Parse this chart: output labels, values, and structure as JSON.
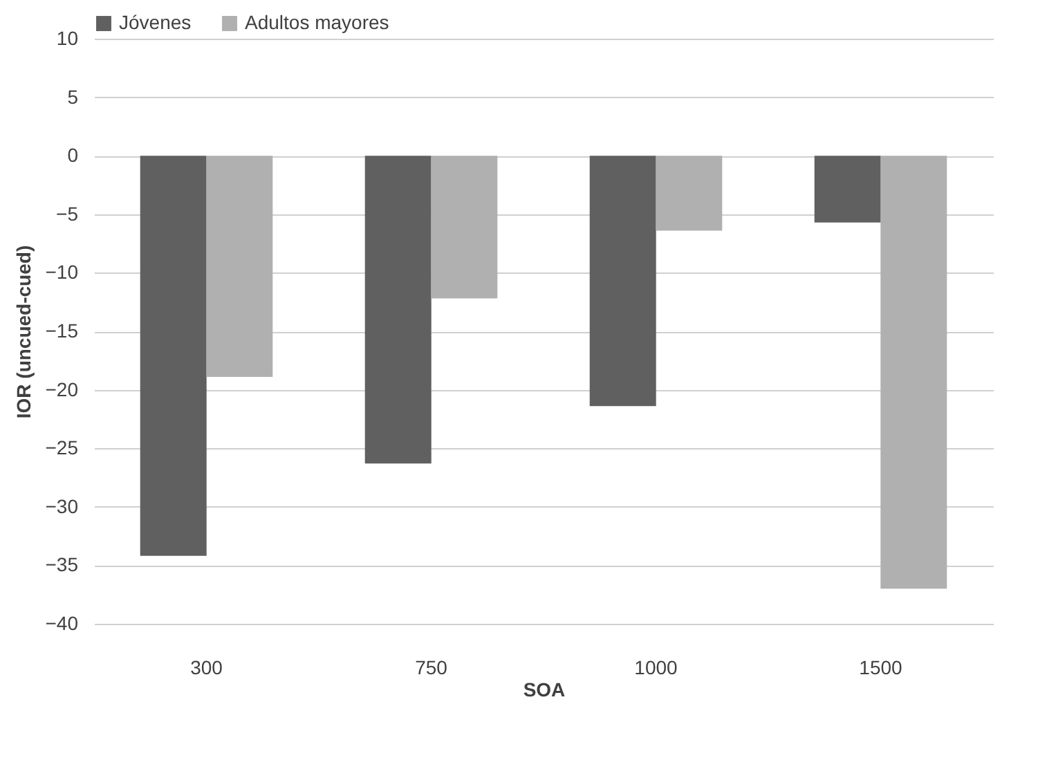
{
  "chart_data": {
    "type": "bar",
    "xlabel": "SOA",
    "ylabel": "IOR  (uncued-cued)",
    "categories": [
      "300",
      "750",
      "1000",
      "1500"
    ],
    "series": [
      {
        "name": "Jóvenes",
        "color": "#606060",
        "values": [
          -34.2,
          -26.3,
          -21.4,
          -5.7
        ]
      },
      {
        "name": "Adultos mayores",
        "color": "#b0b0b0",
        "values": [
          -18.9,
          -12.2,
          -6.4,
          -37.0
        ]
      }
    ],
    "ylim": [
      -40,
      10
    ],
    "yticks": [
      -40,
      -35,
      -30,
      -25,
      -20,
      -15,
      -10,
      -5,
      0,
      5,
      10
    ],
    "grid": "y",
    "legend": "top"
  }
}
